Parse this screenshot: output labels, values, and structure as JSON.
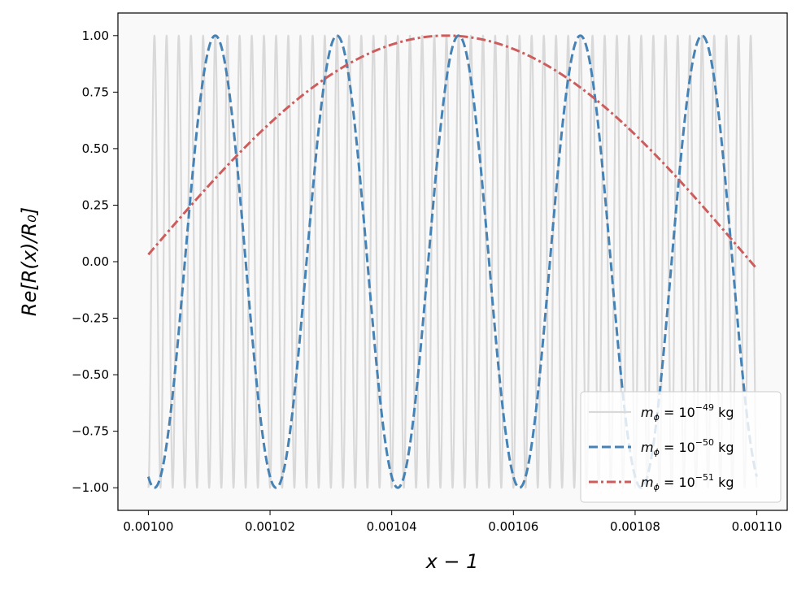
{
  "chart_data": {
    "type": "line",
    "title": "",
    "xlabel": "x − 1",
    "ylabel": "Re[R(x)/R₀]",
    "xlim": [
      0.000995,
      0.001105
    ],
    "ylim": [
      -1.1,
      1.1
    ],
    "xticks": [
      0.001,
      0.00102,
      0.00104,
      0.00106,
      0.00108,
      0.0011
    ],
    "xtick_labels": [
      "0.00100",
      "0.00102",
      "0.00104",
      "0.00106",
      "0.00108",
      "0.00110"
    ],
    "yticks": [
      1,
      0.75,
      0.5,
      0.25,
      0,
      -0.25,
      -0.5,
      -0.75,
      -1
    ],
    "ytick_labels": [
      "1.00",
      "0.75",
      "0.50",
      "0.25",
      "0.00",
      "−0.25",
      "−0.50",
      "−0.75",
      "−1.00"
    ],
    "grid": false,
    "legend_position": "lower-right",
    "background": "#f9f9f9",
    "series": [
      {
        "name": "m_φ = 10⁻⁴⁹ kg",
        "legend_base": "m",
        "legend_sub": "ϕ",
        "legend_mid": " = 10",
        "legend_sup": "−49",
        "legend_unit": " kg",
        "color": "#d9d9d9",
        "style": "solid",
        "x_range": [
          0.001,
          0.0011
        ],
        "form": "cos(2π·(x − 0.001049)/0.000002)",
        "period": 2e-06,
        "peak_x": 0.001049,
        "amplitude": 1
      },
      {
        "name": "m_φ = 10⁻⁵⁰ kg",
        "legend_base": "m",
        "legend_sub": "ϕ",
        "legend_mid": " = 10",
        "legend_sup": "−50",
        "legend_unit": " kg",
        "color": "#4682b4",
        "style": "dashed",
        "x_range": [
          0.001,
          0.0011
        ],
        "form": "cos(2π·(x − 0.001011)/0.00002)",
        "period": 2e-05,
        "peak_x": 0.001011,
        "amplitude": 1
      },
      {
        "name": "m_φ = 10⁻⁵¹ kg",
        "legend_base": "m",
        "legend_sub": "ϕ",
        "legend_mid": " = 10",
        "legend_sup": "−51",
        "legend_unit": " kg",
        "color": "#cd5c5c",
        "style": "dashdot",
        "x_range": [
          0.001,
          0.0011
        ],
        "form": "cos(2π·(x − 0.001049)/0.0002)",
        "period": 0.0002,
        "peak_x": 0.001049,
        "amplitude": 1
      }
    ]
  }
}
